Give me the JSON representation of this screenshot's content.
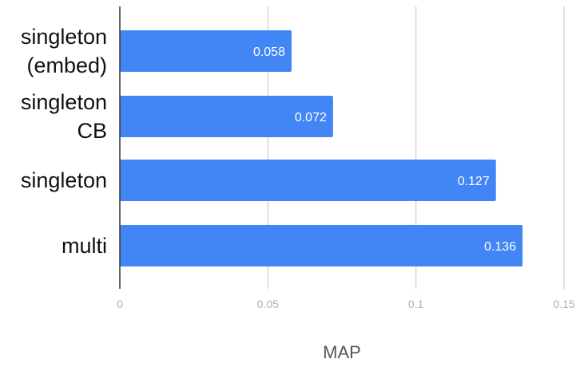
{
  "chart_data": {
    "type": "bar",
    "orientation": "horizontal",
    "categories": [
      [
        "singleton",
        "(embed)"
      ],
      [
        "singleton",
        "CB"
      ],
      [
        "singleton"
      ],
      [
        "multi"
      ]
    ],
    "values": [
      0.058,
      0.072,
      0.127,
      0.136
    ],
    "value_labels": [
      "0.058",
      "0.072",
      "0.127",
      "0.136"
    ],
    "xlabel": "MAP",
    "xlim": [
      0,
      0.15
    ],
    "xticks": [
      0,
      0.05,
      0.1,
      0.15
    ],
    "xtick_labels": [
      "0",
      "0.05",
      "0.1",
      "0.15"
    ],
    "grid": true,
    "bar_color": "#4285f4",
    "grid_color": "#cccccc"
  }
}
